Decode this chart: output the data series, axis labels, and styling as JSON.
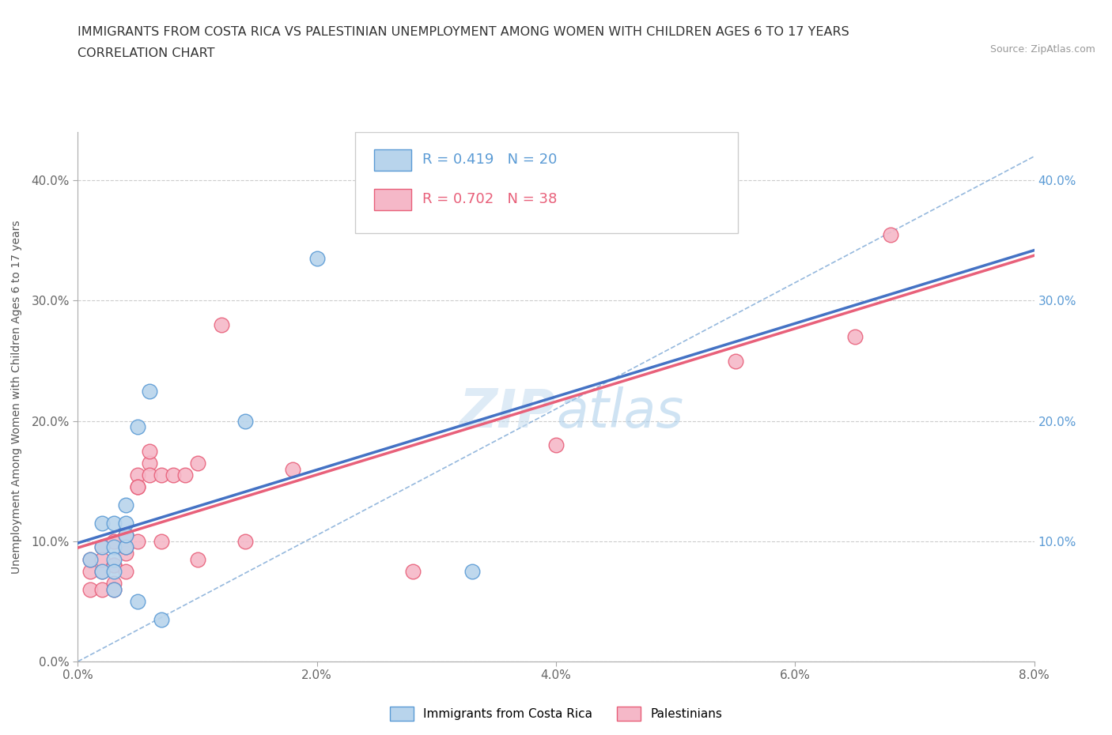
{
  "title_line1": "IMMIGRANTS FROM COSTA RICA VS PALESTINIAN UNEMPLOYMENT AMONG WOMEN WITH CHILDREN AGES 6 TO 17 YEARS",
  "title_line2": "CORRELATION CHART",
  "source": "Source: ZipAtlas.com",
  "ylabel": "Unemployment Among Women with Children Ages 6 to 17 years",
  "xlim": [
    0.0,
    0.08
  ],
  "ylim": [
    0.0,
    0.44
  ],
  "xticks": [
    0.0,
    0.02,
    0.04,
    0.06,
    0.08
  ],
  "yticks": [
    0.0,
    0.1,
    0.2,
    0.3,
    0.4
  ],
  "ytick_labels": [
    "0.0%",
    "10.0%",
    "20.0%",
    "30.0%",
    "40.0%"
  ],
  "xtick_labels": [
    "0.0%",
    "2.0%",
    "4.0%",
    "6.0%",
    "8.0%"
  ],
  "color_blue_fill": "#B8D4EC",
  "color_pink_fill": "#F5B8C8",
  "color_blue_edge": "#5B9BD5",
  "color_pink_edge": "#E8607A",
  "color_blue_line": "#4472C4",
  "color_pink_line": "#E8607A",
  "color_diag": "#7BA7D5",
  "blue_x": [
    0.001,
    0.002,
    0.002,
    0.002,
    0.003,
    0.003,
    0.003,
    0.003,
    0.003,
    0.004,
    0.004,
    0.004,
    0.004,
    0.005,
    0.005,
    0.006,
    0.007,
    0.014,
    0.02,
    0.033
  ],
  "blue_y": [
    0.085,
    0.115,
    0.095,
    0.075,
    0.115,
    0.095,
    0.085,
    0.075,
    0.06,
    0.13,
    0.095,
    0.115,
    0.105,
    0.195,
    0.05,
    0.225,
    0.035,
    0.2,
    0.335,
    0.075
  ],
  "pink_x": [
    0.001,
    0.001,
    0.001,
    0.002,
    0.002,
    0.002,
    0.002,
    0.003,
    0.003,
    0.003,
    0.003,
    0.003,
    0.004,
    0.004,
    0.004,
    0.004,
    0.004,
    0.005,
    0.005,
    0.005,
    0.005,
    0.006,
    0.006,
    0.006,
    0.007,
    0.007,
    0.008,
    0.009,
    0.01,
    0.01,
    0.012,
    0.014,
    0.018,
    0.028,
    0.04,
    0.055,
    0.065,
    0.068
  ],
  "pink_y": [
    0.075,
    0.085,
    0.06,
    0.095,
    0.075,
    0.085,
    0.06,
    0.1,
    0.065,
    0.08,
    0.06,
    0.08,
    0.105,
    0.09,
    0.075,
    0.095,
    0.105,
    0.155,
    0.145,
    0.145,
    0.1,
    0.165,
    0.155,
    0.175,
    0.155,
    0.1,
    0.155,
    0.155,
    0.165,
    0.085,
    0.28,
    0.1,
    0.16,
    0.075,
    0.18,
    0.25,
    0.27,
    0.355
  ]
}
